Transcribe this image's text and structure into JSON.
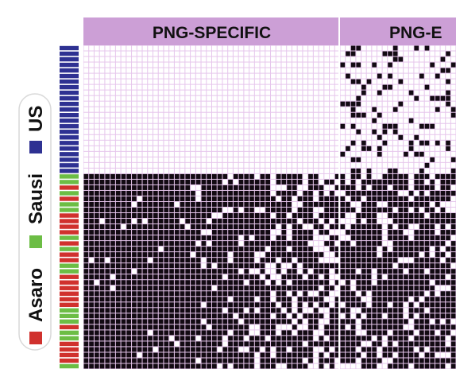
{
  "chart_data": {
    "type": "heatmap",
    "title": "",
    "column_groups": [
      {
        "label": "PNG-SPECIFIC",
        "color": "#cc9fd6"
      },
      {
        "label": "PNG-E",
        "color": "#cc9fd6"
      }
    ],
    "legend": {
      "placement": "left",
      "entries": [
        {
          "label": "US",
          "color": "#2e3192"
        },
        {
          "label": "Sausi",
          "color": "#6cbd45"
        },
        {
          "label": "Asaro",
          "color": "#d0312d"
        }
      ]
    },
    "row_groups": [
      "US",
      "Asaro",
      "Sausi"
    ],
    "cell_colors": {
      "present": "#120a12",
      "absent": "#ffffff",
      "gridline": "#e6c6ec"
    },
    "grid": {
      "rows": 58,
      "png_specific_columns": 48,
      "png_e_columns_visible": 22,
      "us_rows": 23
    },
    "us_block": {
      "png_specific": "absent",
      "png_e": "sparse_present"
    },
    "population_block": {
      "png_specific": "dense_present",
      "png_e": "dense_present"
    }
  }
}
